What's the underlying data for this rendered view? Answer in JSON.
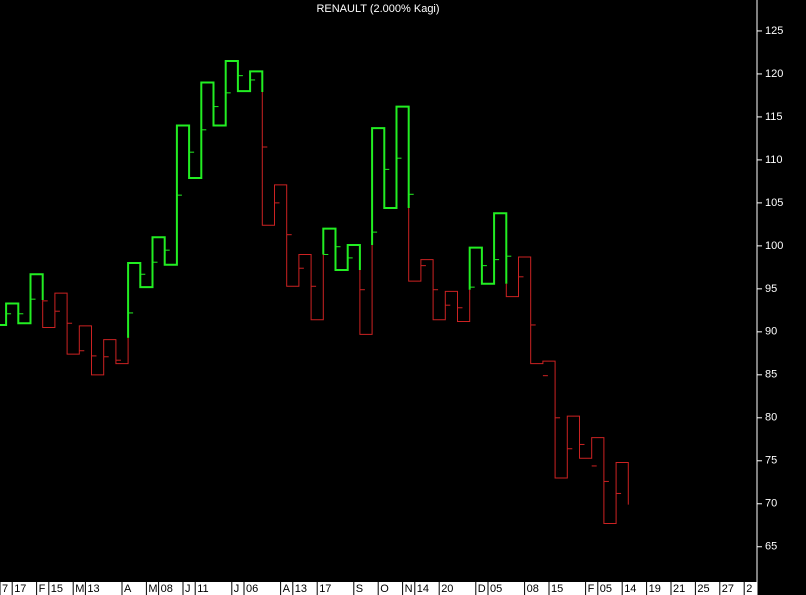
{
  "chart_data": {
    "type": "kagi",
    "title": "RENAULT (2.000% Kagi)",
    "xlim": [
      0.5,
      62.55
    ],
    "ylim": [
      60.9,
      128.6
    ],
    "yticks": [
      65,
      70,
      75,
      80,
      85,
      90,
      95,
      100,
      105,
      110,
      115,
      120,
      125
    ],
    "xticks": [
      {
        "value": 0.5,
        "label": "7"
      },
      {
        "value": 1.5,
        "label": "17"
      },
      {
        "value": 3.5,
        "label": "F"
      },
      {
        "value": 4.5,
        "label": "15"
      },
      {
        "value": 6.5,
        "label": "M"
      },
      {
        "value": 7.5,
        "label": "13"
      },
      {
        "value": 10.5,
        "label": "A"
      },
      {
        "value": 12.5,
        "label": "M"
      },
      {
        "value": 13.5,
        "label": "08"
      },
      {
        "value": 15.5,
        "label": "J"
      },
      {
        "value": 16.5,
        "label": "11"
      },
      {
        "value": 19.5,
        "label": "J"
      },
      {
        "value": 20.5,
        "label": "06"
      },
      {
        "value": 23.5,
        "label": "A"
      },
      {
        "value": 24.5,
        "label": "13"
      },
      {
        "value": 26.5,
        "label": "17"
      },
      {
        "value": 29.5,
        "label": "S"
      },
      {
        "value": 31.5,
        "label": "O"
      },
      {
        "value": 33.5,
        "label": "N"
      },
      {
        "value": 34.5,
        "label": "14"
      },
      {
        "value": 36.5,
        "label": "20"
      },
      {
        "value": 39.5,
        "label": "D"
      },
      {
        "value": 40.5,
        "label": "05"
      },
      {
        "value": 43.5,
        "label": "08"
      },
      {
        "value": 45.5,
        "label": "15"
      },
      {
        "value": 48.5,
        "label": "F"
      },
      {
        "value": 49.5,
        "label": "05"
      },
      {
        "value": 51.5,
        "label": "14"
      },
      {
        "value": 53.5,
        "label": "19"
      },
      {
        "value": 55.5,
        "label": "21"
      },
      {
        "value": 57.5,
        "label": "25"
      },
      {
        "value": 59.5,
        "label": "27"
      },
      {
        "value": 61.5,
        "label": "2"
      }
    ],
    "segments": [
      {
        "color": "#22ee22",
        "width": 2,
        "x": [
          0.5,
          1,
          1,
          2,
          2,
          3,
          3,
          4,
          4
        ],
        "values": [
          90.8,
          90.8,
          93.3,
          93.3,
          91.0,
          91.0,
          96.7,
          96.7,
          93.7
        ]
      },
      {
        "color": "#cc2222",
        "width": 1,
        "x": [
          4,
          4,
          5,
          5,
          6,
          6,
          7,
          7,
          8,
          8,
          9,
          9,
          10,
          10,
          11,
          11
        ],
        "values": [
          93.7,
          90.5,
          90.5,
          94.5,
          94.5,
          87.4,
          87.4,
          90.7,
          90.7,
          85.0,
          85.0,
          89.1,
          89.1,
          86.3,
          86.3,
          89.3
        ]
      },
      {
        "color": "#22ee22",
        "width": 2,
        "x": [
          11,
          11,
          12,
          12,
          13,
          13,
          14,
          14,
          15,
          15,
          16,
          16,
          17,
          17,
          18,
          18,
          19,
          19,
          20,
          20,
          21,
          21,
          22,
          22
        ],
        "values": [
          89.3,
          98.0,
          98.0,
          95.2,
          95.2,
          101.0,
          101.0,
          97.8,
          97.8,
          114.0,
          114.0,
          107.9,
          107.9,
          119.0,
          119.0,
          114.0,
          114.0,
          121.5,
          121.5,
          118.0,
          118.0,
          120.3,
          120.3,
          117.9
        ]
      },
      {
        "color": "#cc2222",
        "width": 1,
        "x": [
          22,
          22,
          23,
          23,
          24,
          24,
          25,
          25,
          26,
          26,
          27,
          27
        ],
        "values": [
          117.9,
          102.4,
          102.4,
          107.1,
          107.1,
          95.3,
          95.3,
          99.0,
          99.0,
          91.4,
          91.4,
          99.0
        ]
      },
      {
        "color": "#22ee22",
        "width": 2,
        "x": [
          27,
          27,
          28,
          28,
          29,
          29,
          30,
          30
        ],
        "values": [
          99.0,
          102.0,
          102.0,
          97.2,
          97.2,
          100.1,
          100.1,
          97.2
        ]
      },
      {
        "color": "#cc2222",
        "width": 1,
        "x": [
          30,
          30,
          31,
          31
        ],
        "values": [
          97.2,
          89.7,
          89.7,
          100.1
        ]
      },
      {
        "color": "#22ee22",
        "width": 2,
        "x": [
          31,
          31,
          32,
          32,
          33,
          33,
          34,
          34
        ],
        "values": [
          100.1,
          113.7,
          113.7,
          104.4,
          104.4,
          116.2,
          116.2,
          104.4
        ]
      },
      {
        "color": "#cc2222",
        "width": 1,
        "x": [
          34,
          34,
          35,
          35,
          36,
          36,
          37,
          37,
          38,
          38,
          39,
          39
        ],
        "values": [
          104.4,
          95.9,
          95.9,
          98.4,
          98.4,
          91.4,
          91.4,
          94.7,
          94.7,
          91.2,
          91.2,
          94.9
        ]
      },
      {
        "color": "#22ee22",
        "width": 2,
        "x": [
          39,
          39,
          40,
          40,
          41,
          41,
          42,
          42
        ],
        "values": [
          94.9,
          99.8,
          99.8,
          95.6,
          95.6,
          103.8,
          103.8,
          95.6
        ]
      },
      {
        "color": "#cc2222",
        "width": 1,
        "x": [
          42,
          42,
          43,
          43,
          44,
          44,
          45,
          45,
          46,
          46,
          47,
          47,
          48,
          48,
          49,
          49,
          50,
          50,
          51,
          51,
          52,
          52
        ],
        "values": [
          95.6,
          94.1,
          94.1,
          98.7,
          98.7,
          86.3,
          86.3,
          86.6,
          86.6,
          73.0,
          73.0,
          80.2,
          80.2,
          75.3,
          75.3,
          77.7,
          77.7,
          67.7,
          67.7,
          74.8,
          74.8,
          69.9
        ]
      }
    ],
    "close_marks": {
      "x": [
        1,
        2,
        3,
        4,
        5,
        6,
        7,
        8,
        9,
        10,
        11,
        12,
        13,
        14,
        15,
        16,
        17,
        18,
        19,
        20,
        21,
        22,
        23,
        24,
        25,
        26,
        27,
        28,
        29,
        30,
        31,
        32,
        33,
        34,
        35,
        36,
        37,
        38,
        39,
        40,
        41,
        42,
        43,
        44,
        45,
        46,
        47,
        48,
        49,
        50,
        51
      ],
      "values": [
        92.1,
        92.1,
        93.8,
        93.6,
        92.4,
        91.0,
        87.8,
        87.2,
        87.1,
        86.7,
        92.2,
        96.7,
        98.1,
        99.5,
        105.9,
        110.9,
        113.5,
        116.2,
        117.8,
        119.8,
        119.3,
        111.5,
        105.0,
        101.3,
        97.4,
        95.3,
        99.0,
        99.9,
        98.6,
        94.9,
        101.6,
        108.9,
        110.2,
        106.0,
        97.7,
        94.9,
        93.1,
        92.8,
        95.2,
        97.7,
        98.4,
        98.8,
        96.4,
        90.8,
        84.9,
        80.0,
        76.4,
        76.9,
        74.4,
        72.6,
        71.2
      ]
    }
  }
}
